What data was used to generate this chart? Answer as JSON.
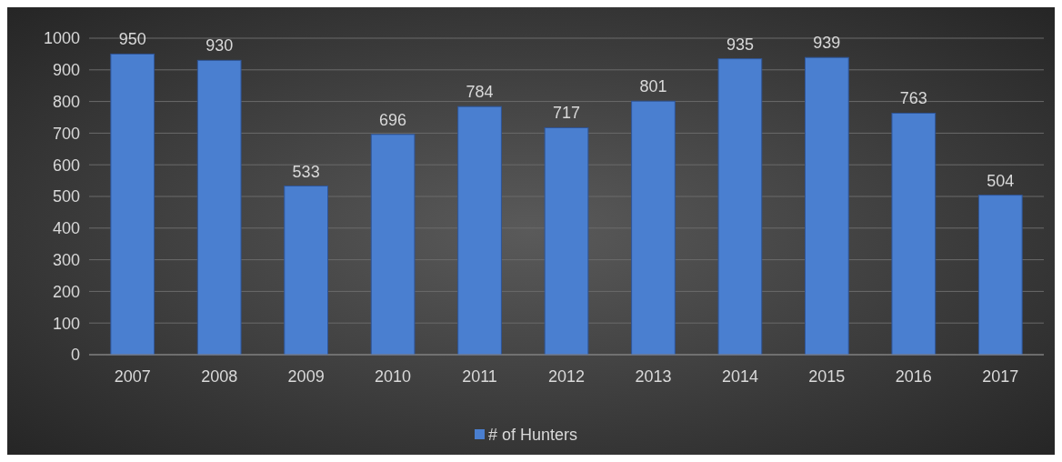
{
  "chart_data": {
    "type": "bar",
    "categories": [
      "2007",
      "2008",
      "2009",
      "2010",
      "2011",
      "2012",
      "2013",
      "2014",
      "2015",
      "2016",
      "2017"
    ],
    "series": [
      {
        "name": "# of Hunters",
        "color": "#4a7fd0",
        "values": [
          950,
          930,
          533,
          696,
          784,
          717,
          801,
          935,
          939,
          763,
          504
        ]
      }
    ],
    "ylim": [
      0,
      1000
    ],
    "yticks": [
      0,
      100,
      200,
      300,
      400,
      500,
      600,
      700,
      800,
      900,
      1000
    ],
    "grid": "y",
    "legend": "bottom",
    "data_labels": true
  }
}
